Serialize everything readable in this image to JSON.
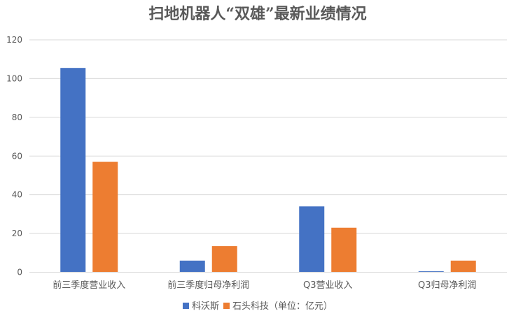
{
  "chart_data": {
    "type": "bar",
    "title": "扫地机器人“双雄”最新业绩情况",
    "categories": [
      "前三季度营业收入",
      "前三季度归母净利润",
      "Q3营业收入",
      "Q3归母净利润"
    ],
    "series": [
      {
        "name": "科沃斯",
        "color": "#4472C4",
        "values": [
          105.5,
          6.0,
          34.0,
          0.5
        ]
      },
      {
        "name": "石头科技（单位：亿元）",
        "color": "#ED7D31",
        "values": [
          57.0,
          13.5,
          23.0,
          6.0
        ]
      }
    ],
    "ylim": [
      0,
      120
    ],
    "yticks": [
      0,
      20,
      40,
      60,
      80,
      100,
      120
    ],
    "grid": true,
    "legend_position": "bottom"
  }
}
